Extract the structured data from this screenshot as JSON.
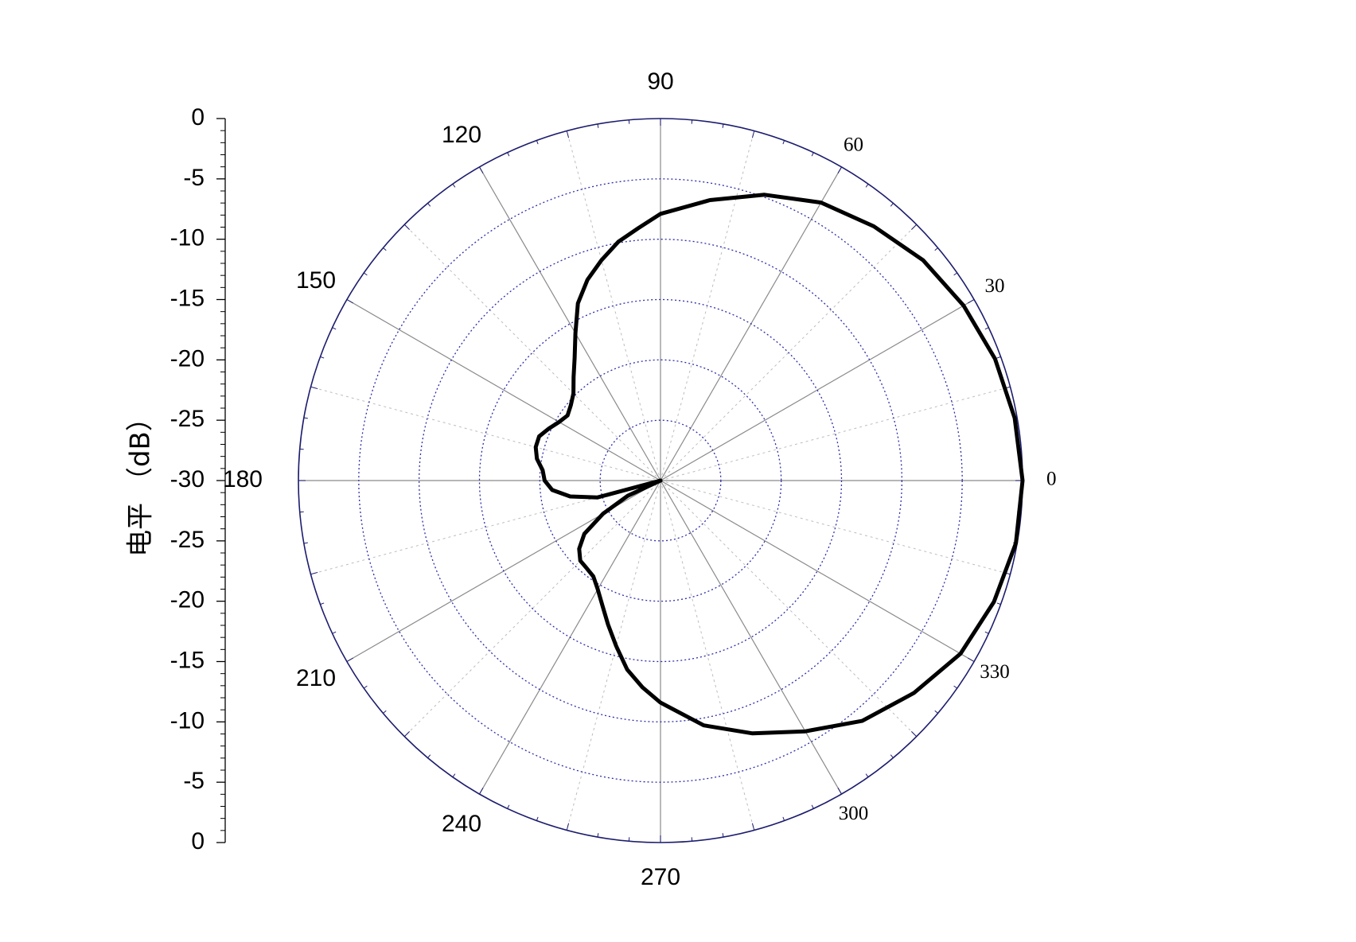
{
  "chart_data": {
    "type": "polar-line",
    "title": "",
    "ylabel": "电平 （dB）",
    "radial_range_db": [
      -30,
      0
    ],
    "radial_step_db": 5,
    "radial_tick_labels": [
      "0",
      "-5",
      "-10",
      "-15",
      "-20",
      "-25",
      "-30",
      "-25",
      "-20",
      "-15",
      "-10",
      "-5",
      "0"
    ],
    "angle_tick_labels": [
      {
        "deg": 0,
        "label": "0"
      },
      {
        "deg": 30,
        "label": "30"
      },
      {
        "deg": 60,
        "label": "60"
      },
      {
        "deg": 90,
        "label": "90"
      },
      {
        "deg": 120,
        "label": "120"
      },
      {
        "deg": 150,
        "label": "150"
      },
      {
        "deg": 180,
        "label": "180"
      },
      {
        "deg": 210,
        "label": "210"
      },
      {
        "deg": 240,
        "label": "240"
      },
      {
        "deg": 270,
        "label": "270"
      },
      {
        "deg": 300,
        "label": "300"
      },
      {
        "deg": 330,
        "label": "330"
      }
    ],
    "major_spokes_deg": [
      0,
      30,
      60,
      90,
      120,
      150,
      180,
      210,
      240,
      270,
      300,
      330
    ],
    "minor_spokes_deg": [
      15,
      45,
      75,
      105,
      135,
      165,
      195,
      225,
      255,
      285,
      315,
      345
    ],
    "grid": true,
    "colors": {
      "spokes": "#8a8a8a",
      "minor_spokes": "#bdbdbd",
      "rings": "#2e2eaa",
      "outer_circle": "#1c1c6e",
      "series": "#000000"
    },
    "series": [
      {
        "angles_deg": [
          0,
          10,
          20,
          30,
          40,
          50,
          60,
          70,
          80,
          90,
          95,
          100,
          105,
          110,
          115,
          120,
          125,
          130,
          135,
          140,
          145,
          150,
          155,
          160,
          165,
          170,
          175,
          180,
          185,
          190,
          195,
          200,
          205,
          210,
          215,
          220,
          225,
          230,
          235,
          240,
          245,
          250,
          255,
          260,
          265,
          270,
          280,
          290,
          300,
          310,
          320,
          330,
          340,
          350,
          360
        ],
        "values_db": [
          0,
          -0.2,
          -0.5,
          -1.0,
          -1.6,
          -2.5,
          -3.4,
          -4.8,
          -6.4,
          -7.9,
          -9.0,
          -9.9,
          -11.1,
          -12.3,
          -13.8,
          -15.9,
          -17.6,
          -18.8,
          -19.8,
          -20.3,
          -20.6,
          -20.3,
          -19.8,
          -19.3,
          -19.3,
          -19.6,
          -20.2,
          -20.4,
          -21.0,
          -22.4,
          -24.6,
          -30,
          -27.0,
          -24.5,
          -22.3,
          -21.2,
          -20.6,
          -20.5,
          -20.3,
          -19.6,
          -18.6,
          -17.3,
          -15.8,
          -14.1,
          -12.8,
          -11.6,
          -9.4,
          -7.7,
          -6.0,
          -4.0,
          -2.6,
          -1.3,
          -0.6,
          -0.1,
          0
        ]
      }
    ]
  }
}
